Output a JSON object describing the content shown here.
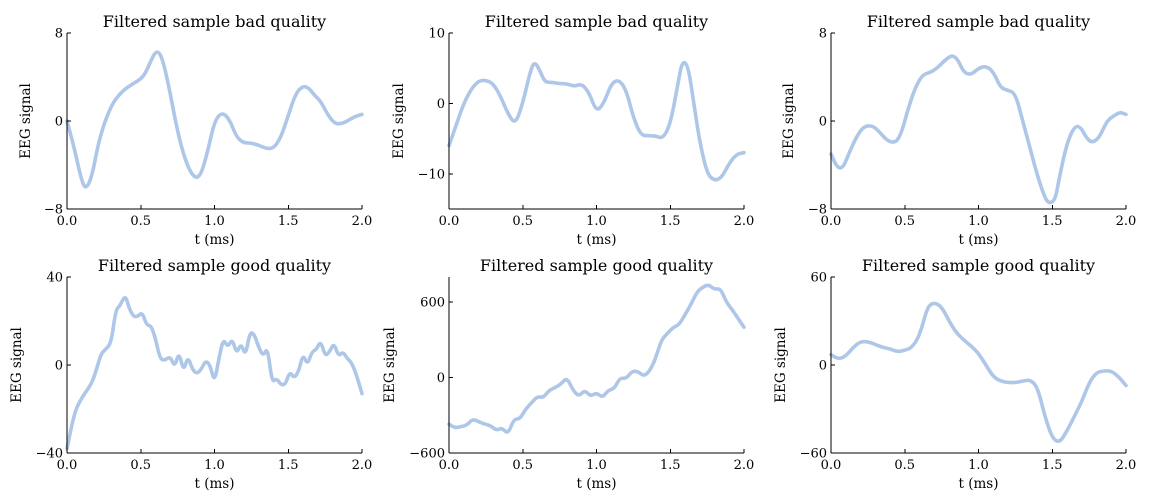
{
  "figure": {
    "line_color": "#aec7e8"
  },
  "chart_data": [
    {
      "type": "line",
      "title": "Filtered sample bad quality",
      "xlabel": "t (ms)",
      "ylabel": "EEG signal",
      "xlim": [
        0.0,
        2.0
      ],
      "ylim": [
        -8,
        8
      ],
      "xticks": [
        0.0,
        0.5,
        1.0,
        1.5,
        2.0
      ],
      "xtick_labels": [
        "0.0",
        "0.5",
        "1.0",
        "1.5",
        "2.0"
      ],
      "yticks": [
        -8,
        0,
        8
      ],
      "ytick_labels": [
        "−8",
        "0",
        "8"
      ],
      "x": [
        0.0,
        0.05,
        0.1,
        0.13,
        0.17,
        0.22,
        0.3,
        0.38,
        0.45,
        0.52,
        0.57,
        0.6,
        0.63,
        0.66,
        0.7,
        0.75,
        0.8,
        0.85,
        0.9,
        0.95,
        1.0,
        1.05,
        1.1,
        1.15,
        1.2,
        1.25,
        1.3,
        1.35,
        1.4,
        1.45,
        1.5,
        1.55,
        1.6,
        1.64,
        1.68,
        1.72,
        1.77,
        1.82,
        1.87,
        1.9,
        1.95,
        2.0
      ],
      "y": [
        0.0,
        -2.5,
        -5.5,
        -6.2,
        -5.0,
        -1.5,
        1.5,
        2.8,
        3.4,
        4.0,
        5.5,
        6.3,
        6.2,
        5.0,
        2.5,
        -1.0,
        -3.5,
        -5.0,
        -5.2,
        -3.0,
        0.0,
        0.8,
        0.2,
        -1.5,
        -2.0,
        -2.0,
        -2.2,
        -2.5,
        -2.5,
        -1.5,
        0.5,
        2.5,
        3.2,
        3.0,
        2.3,
        1.8,
        0.5,
        -0.3,
        -0.2,
        0.0,
        0.4,
        0.6
      ]
    },
    {
      "type": "line",
      "title": "Filtered sample bad quality",
      "xlabel": "t (ms)",
      "ylabel": "EEG signal",
      "xlim": [
        0.0,
        2.0
      ],
      "ylim": [
        -15,
        10
      ],
      "xticks": [
        0.0,
        0.5,
        1.0,
        1.5,
        2.0
      ],
      "xtick_labels": [
        "0.0",
        "0.5",
        "1.0",
        "1.5",
        "2.0"
      ],
      "yticks": [
        -10,
        0,
        10
      ],
      "ytick_labels": [
        "−10",
        "0",
        "10"
      ],
      "x": [
        0.0,
        0.05,
        0.1,
        0.15,
        0.2,
        0.25,
        0.3,
        0.35,
        0.4,
        0.45,
        0.5,
        0.55,
        0.58,
        0.62,
        0.65,
        0.7,
        0.75,
        0.8,
        0.85,
        0.9,
        0.95,
        1.0,
        1.05,
        1.1,
        1.15,
        1.2,
        1.25,
        1.3,
        1.35,
        1.4,
        1.45,
        1.5,
        1.55,
        1.58,
        1.62,
        1.66,
        1.7,
        1.75,
        1.8,
        1.85,
        1.9,
        1.95,
        2.0
      ],
      "y": [
        -6.0,
        -3.0,
        0.0,
        2.0,
        3.2,
        3.3,
        2.8,
        1.0,
        -1.5,
        -3.0,
        0.0,
        4.5,
        6.0,
        4.5,
        3.0,
        3.0,
        2.8,
        2.8,
        2.4,
        2.8,
        1.5,
        -1.2,
        0.0,
        2.8,
        3.4,
        2.0,
        -2.0,
        -4.5,
        -4.6,
        -4.6,
        -5.0,
        -3.0,
        2.5,
        6.0,
        5.5,
        0.0,
        -5.5,
        -10.0,
        -11.0,
        -10.5,
        -8.5,
        -7.2,
        -7.0
      ]
    },
    {
      "type": "line",
      "title": "Filtered sample bad quality",
      "xlabel": "t (ms)",
      "ylabel": "EEG signal",
      "xlim": [
        0.0,
        2.0
      ],
      "ylim": [
        -8,
        8
      ],
      "xticks": [
        0.0,
        0.5,
        1.0,
        1.5,
        2.0
      ],
      "xtick_labels": [
        "0.0",
        "0.5",
        "1.0",
        "1.5",
        "2.0"
      ],
      "yticks": [
        -8,
        0,
        8
      ],
      "ytick_labels": [
        "−8",
        "0",
        "8"
      ],
      "x": [
        0.0,
        0.04,
        0.08,
        0.12,
        0.17,
        0.22,
        0.28,
        0.33,
        0.38,
        0.44,
        0.48,
        0.52,
        0.57,
        0.62,
        0.67,
        0.72,
        0.77,
        0.82,
        0.86,
        0.9,
        0.95,
        1.0,
        1.05,
        1.1,
        1.15,
        1.2,
        1.25,
        1.3,
        1.35,
        1.4,
        1.45,
        1.48,
        1.52,
        1.55,
        1.6,
        1.65,
        1.69,
        1.73,
        1.77,
        1.82,
        1.87,
        1.92,
        1.96,
        2.0
      ],
      "y": [
        -3.0,
        -4.2,
        -4.3,
        -3.0,
        -1.5,
        -0.5,
        -0.4,
        -1.0,
        -1.8,
        -2.0,
        -1.0,
        1.0,
        3.0,
        4.2,
        4.4,
        4.8,
        5.5,
        6.0,
        5.6,
        4.4,
        4.2,
        4.8,
        5.0,
        4.5,
        3.0,
        2.8,
        2.5,
        0.0,
        -2.5,
        -5.0,
        -7.0,
        -7.5,
        -7.2,
        -5.0,
        -2.0,
        -0.5,
        -0.5,
        -1.5,
        -2.0,
        -1.5,
        0.0,
        0.5,
        0.8,
        0.6
      ]
    },
    {
      "type": "line",
      "title": "Filtered sample good quality",
      "xlabel": "t (ms)",
      "ylabel": "EEG signal",
      "xlim": [
        0.0,
        2.0
      ],
      "ylim": [
        -40,
        40
      ],
      "xticks": [
        0.0,
        0.5,
        1.0,
        1.5,
        2.0
      ],
      "xtick_labels": [
        "0.0",
        "0.5",
        "1.0",
        "1.5",
        "2.0"
      ],
      "yticks": [
        -40,
        0,
        40
      ],
      "ytick_labels": [
        "−40",
        "0",
        "40"
      ],
      "x": [
        0.0,
        0.03,
        0.06,
        0.1,
        0.13,
        0.17,
        0.2,
        0.23,
        0.26,
        0.3,
        0.33,
        0.36,
        0.38,
        0.4,
        0.42,
        0.45,
        0.48,
        0.51,
        0.54,
        0.57,
        0.6,
        0.63,
        0.66,
        0.7,
        0.73,
        0.76,
        0.79,
        0.82,
        0.85,
        0.88,
        0.91,
        0.94,
        0.97,
        1.0,
        1.03,
        1.06,
        1.09,
        1.12,
        1.15,
        1.18,
        1.21,
        1.24,
        1.27,
        1.3,
        1.33,
        1.36,
        1.39,
        1.42,
        1.45,
        1.48,
        1.51,
        1.54,
        1.57,
        1.6,
        1.63,
        1.66,
        1.69,
        1.72,
        1.75,
        1.78,
        1.81,
        1.84,
        1.87,
        1.9,
        1.93,
        1.96,
        2.0
      ],
      "y": [
        -38.0,
        -28.0,
        -20.0,
        -15.0,
        -12.0,
        -8.0,
        -2.0,
        5.0,
        7.0,
        10.0,
        25.0,
        27.0,
        30.0,
        31.0,
        26.0,
        22.0,
        22.0,
        24.0,
        18.0,
        18.0,
        12.0,
        3.0,
        2.0,
        4.0,
        -1.0,
        6.0,
        -3.0,
        4.0,
        -2.0,
        -4.0,
        -2.0,
        2.0,
        0.0,
        -8.0,
        3.0,
        12.0,
        8.0,
        12.0,
        5.0,
        10.0,
        4.0,
        15.0,
        14.0,
        8.0,
        4.0,
        8.0,
        -8.0,
        -6.0,
        -9.0,
        -9.0,
        -3.0,
        -6.0,
        -3.0,
        5.0,
        0.0,
        6.0,
        7.0,
        11.0,
        4.0,
        6.0,
        10.0,
        4.0,
        6.0,
        3.0,
        1.0,
        -4.0,
        -13.0
      ]
    },
    {
      "type": "line",
      "title": "Filtered sample good quality",
      "xlabel": "t (ms)",
      "ylabel": "EEG signal",
      "xlim": [
        0.0,
        2.0
      ],
      "ylim": [
        -600,
        800
      ],
      "xticks": [
        0.0,
        0.5,
        1.0,
        1.5,
        2.0
      ],
      "xtick_labels": [
        "0.0",
        "0.5",
        "1.0",
        "1.5",
        "2.0"
      ],
      "yticks": [
        -600,
        0,
        600
      ],
      "ytick_labels": [
        "−600",
        "0",
        "600"
      ],
      "x": [
        0.0,
        0.04,
        0.08,
        0.12,
        0.16,
        0.2,
        0.24,
        0.28,
        0.32,
        0.36,
        0.4,
        0.44,
        0.48,
        0.52,
        0.56,
        0.6,
        0.64,
        0.68,
        0.72,
        0.76,
        0.8,
        0.84,
        0.88,
        0.92,
        0.96,
        1.0,
        1.04,
        1.08,
        1.12,
        1.16,
        1.2,
        1.24,
        1.28,
        1.32,
        1.36,
        1.4,
        1.44,
        1.48,
        1.52,
        1.56,
        1.6,
        1.64,
        1.68,
        1.72,
        1.76,
        1.8,
        1.84,
        1.88,
        1.92,
        1.96,
        2.0
      ],
      "y": [
        -370,
        -400,
        -390,
        -380,
        -330,
        -350,
        -370,
        -380,
        -420,
        -400,
        -450,
        -330,
        -330,
        -250,
        -200,
        -150,
        -160,
        -100,
        -80,
        -50,
        0,
        -100,
        -150,
        -100,
        -150,
        -120,
        -160,
        -100,
        -90,
        0,
        -10,
        50,
        50,
        10,
        50,
        150,
        300,
        350,
        400,
        420,
        500,
        580,
        680,
        720,
        740,
        700,
        710,
        600,
        540,
        470,
        400
      ]
    },
    {
      "type": "line",
      "title": "Filtered sample good quality",
      "xlabel": "t (ms)",
      "ylabel": "EEG signal",
      "xlim": [
        0.0,
        2.0
      ],
      "ylim": [
        -60,
        60
      ],
      "xticks": [
        0.0,
        0.5,
        1.0,
        1.5,
        2.0
      ],
      "xtick_labels": [
        "0.0",
        "0.5",
        "1.0",
        "1.5",
        "2.0"
      ],
      "yticks": [
        -60,
        0,
        60
      ],
      "ytick_labels": [
        "−60",
        "0",
        "60"
      ],
      "x": [
        0.0,
        0.05,
        0.1,
        0.15,
        0.2,
        0.25,
        0.3,
        0.35,
        0.4,
        0.45,
        0.5,
        0.55,
        0.6,
        0.65,
        0.68,
        0.72,
        0.76,
        0.8,
        0.85,
        0.9,
        0.95,
        1.0,
        1.05,
        1.1,
        1.15,
        1.2,
        1.25,
        1.3,
        1.35,
        1.4,
        1.45,
        1.5,
        1.55,
        1.6,
        1.65,
        1.7,
        1.75,
        1.8,
        1.85,
        1.9,
        1.95,
        2.0
      ],
      "y": [
        7,
        4,
        6,
        12,
        16,
        16,
        14,
        12,
        11,
        9,
        10,
        12,
        20,
        38,
        42,
        42,
        38,
        30,
        22,
        17,
        13,
        8,
        0,
        -8,
        -11,
        -12,
        -12,
        -11,
        -10,
        -15,
        -35,
        -50,
        -53,
        -45,
        -35,
        -25,
        -12,
        -5,
        -4,
        -4,
        -8,
        -14
      ]
    }
  ]
}
